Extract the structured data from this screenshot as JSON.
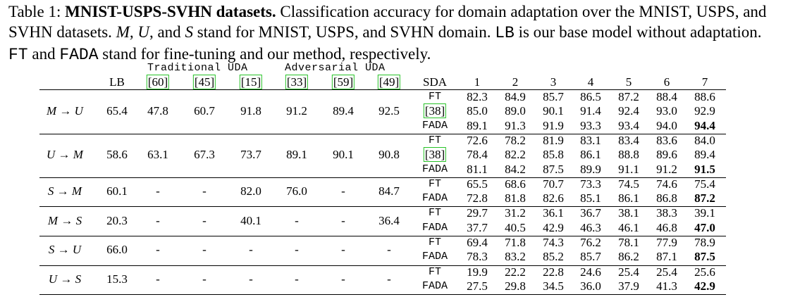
{
  "caption": {
    "label": "Table 1:",
    "title": "MNIST-USPS-SVHN datasets.",
    "text_1": " Classification accuracy for domain adaptation over the MNIST, USPS, and SVHN datasets. ",
    "symbols": "M, U",
    "text_2": ", and ",
    "symbol_s": "S",
    "text_3": " stand for MNIST, USPS, and SVHN domain. ",
    "lb": "LB",
    "text_4": " is our base model without adaptation. ",
    "ft": "FT",
    "text_5": " and ",
    "fada": "FADA",
    "text_6": " stand for fine-tuning and our method, respectively."
  },
  "header": {
    "group_traditional": "Traditional UDA",
    "group_adversarial": "Adversarial UDA",
    "lb": "LB",
    "citations": [
      "[60]",
      "[45]",
      "[15]",
      "[33]",
      "[59]",
      "[49]"
    ],
    "sda": "SDA",
    "shots": [
      "1",
      "2",
      "3",
      "4",
      "5",
      "6",
      "7"
    ]
  },
  "rows": [
    {
      "task": "M → U",
      "lb": "65.4",
      "uda": [
        "47.8",
        "60.7",
        "91.8",
        "91.2",
        "89.4",
        "92.5"
      ],
      "sda": [
        {
          "method": "FT",
          "cite": false,
          "vals": [
            "82.3",
            "84.9",
            "85.7",
            "86.5",
            "87.2",
            "88.4",
            "88.6"
          ]
        },
        {
          "method": "[38]",
          "cite": true,
          "vals": [
            "85.0",
            "89.0",
            "90.1",
            "91.4",
            "92.4",
            "93.0",
            "92.9"
          ]
        },
        {
          "method": "FADA",
          "cite": false,
          "vals": [
            "89.1",
            "91.3",
            "91.9",
            "93.3",
            "93.4",
            "94.0",
            "94.4"
          ],
          "bold_last": true
        }
      ]
    },
    {
      "task": "U → M",
      "lb": "58.6",
      "uda": [
        "63.1",
        "67.3",
        "73.7",
        "89.1",
        "90.1",
        "90.8"
      ],
      "sda": [
        {
          "method": "FT",
          "cite": false,
          "vals": [
            "72.6",
            "78.2",
            "81.9",
            "83.1",
            "83.4",
            "83.6",
            "84.0"
          ]
        },
        {
          "method": "[38]",
          "cite": true,
          "vals": [
            "78.4",
            "82.2",
            "85.8",
            "86.1",
            "88.8",
            "89.6",
            "89.4"
          ]
        },
        {
          "method": "FADA",
          "cite": false,
          "vals": [
            "81.1",
            "84.2",
            "87.5",
            "89.9",
            "91.1",
            "91.2",
            "91.5"
          ],
          "bold_last": true
        }
      ]
    },
    {
      "task": "S → M",
      "lb": "60.1",
      "uda": [
        "-",
        "-",
        "82.0",
        "76.0",
        "-",
        "84.7"
      ],
      "sda": [
        {
          "method": "FT",
          "cite": false,
          "vals": [
            "65.5",
            "68.6",
            "70.7",
            "73.3",
            "74.5",
            "74.6",
            "75.4"
          ]
        },
        {
          "method": "FADA",
          "cite": false,
          "vals": [
            "72.8",
            "81.8",
            "82.6",
            "85.1",
            "86.1",
            "86.8",
            "87.2"
          ],
          "bold_last": true
        }
      ]
    },
    {
      "task": "M → S",
      "lb": "20.3",
      "uda": [
        "-",
        "-",
        "40.1",
        "-",
        "-",
        "36.4"
      ],
      "sda": [
        {
          "method": "FT",
          "cite": false,
          "vals": [
            "29.7",
            "31.2",
            "36.1",
            "36.7",
            "38.1",
            "38.3",
            "39.1"
          ]
        },
        {
          "method": "FADA",
          "cite": false,
          "vals": [
            "37.7",
            "40.5",
            "42.9",
            "46.3",
            "46.1",
            "46.8",
            "47.0"
          ],
          "bold_last": true
        }
      ]
    },
    {
      "task": "S → U",
      "lb": "66.0",
      "uda": [
        "-",
        "-",
        "-",
        "-",
        "-",
        "-"
      ],
      "sda": [
        {
          "method": "FT",
          "cite": false,
          "vals": [
            "69.4",
            "71.8",
            "74.3",
            "76.2",
            "78.1",
            "77.9",
            "78.9"
          ]
        },
        {
          "method": "FADA",
          "cite": false,
          "vals": [
            "78.3",
            "83.2",
            "85.2",
            "85.7",
            "86.2",
            "87.1",
            "87.5"
          ],
          "bold_last": true
        }
      ]
    },
    {
      "task": "U → S",
      "lb": "15.3",
      "uda": [
        "-",
        "-",
        "-",
        "-",
        "-",
        "-"
      ],
      "sda": [
        {
          "method": "FT",
          "cite": false,
          "vals": [
            "19.9",
            "22.2",
            "22.8",
            "24.6",
            "25.4",
            "25.4",
            "25.6"
          ]
        },
        {
          "method": "FADA",
          "cite": false,
          "vals": [
            "27.5",
            "29.8",
            "34.5",
            "36.0",
            "37.9",
            "41.3",
            "42.9"
          ],
          "bold_last": true
        }
      ]
    }
  ]
}
